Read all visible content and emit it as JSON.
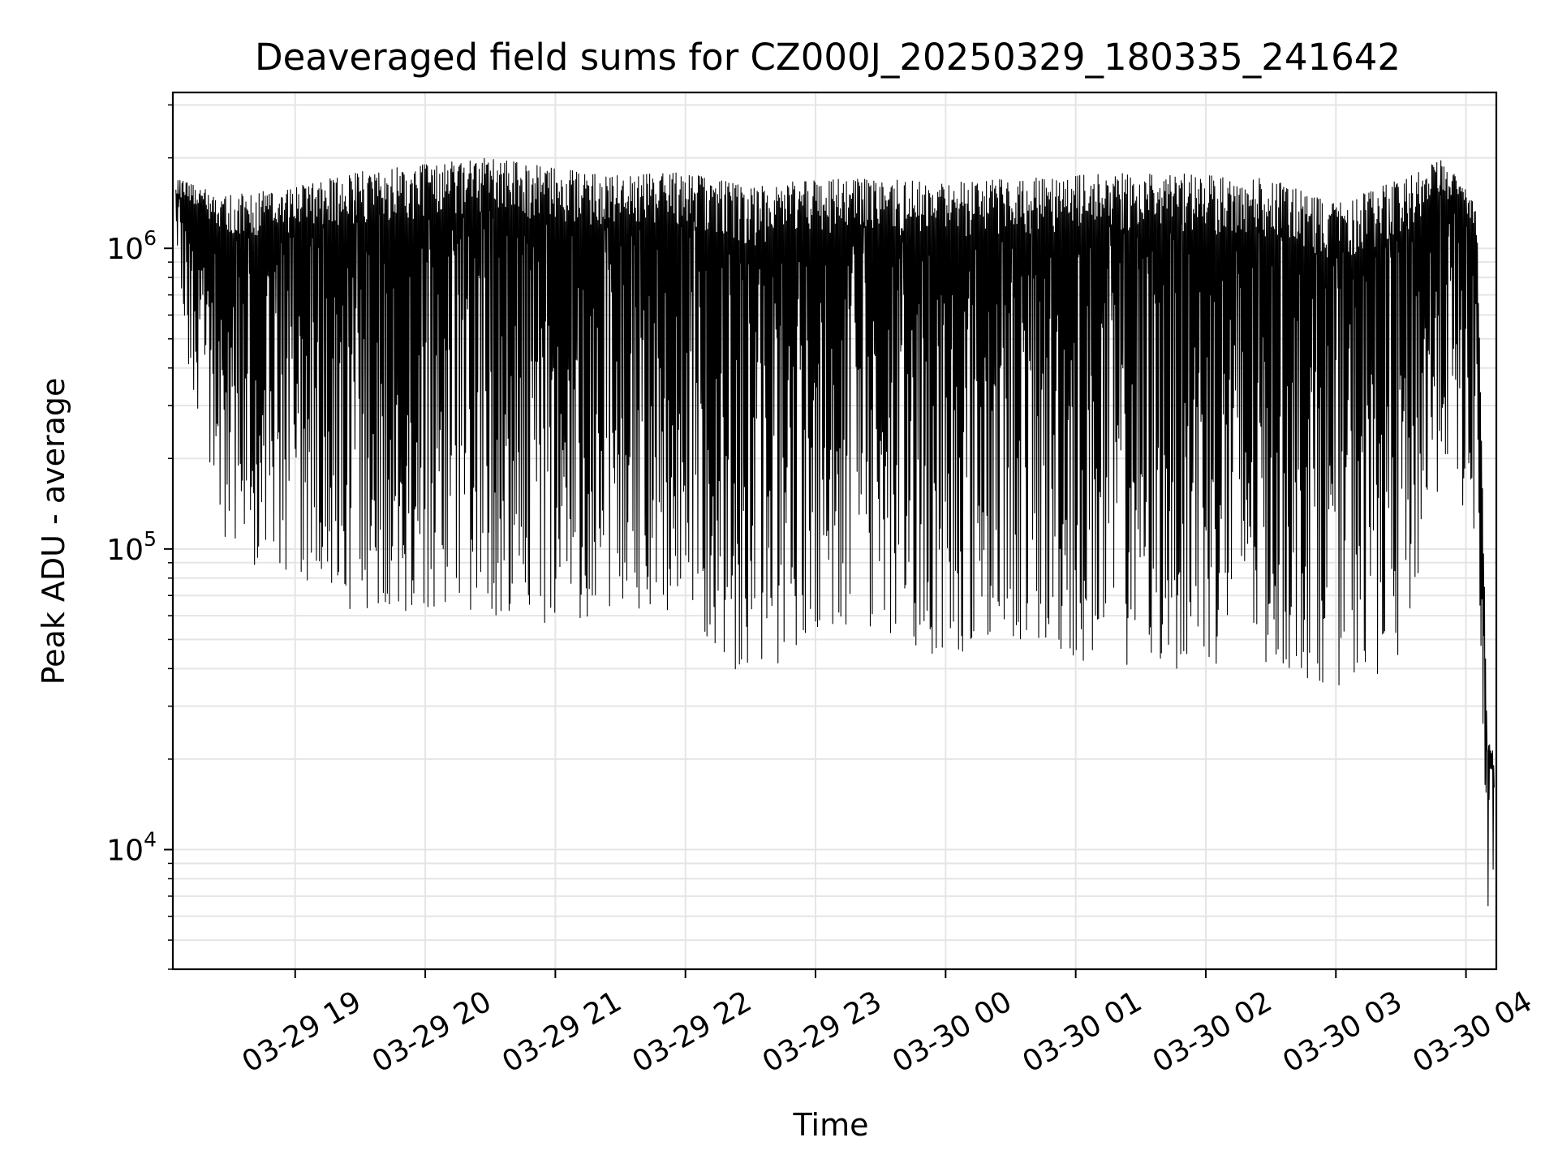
{
  "chart_data": {
    "type": "line",
    "title": "Deaveraged field sums for CZ000J_20250329_180335_241642",
    "xlabel": "Time",
    "ylabel": "Peak ADU - average",
    "yscale": "log",
    "xlim": [
      "2025-03-29 18:03:35",
      "2025-03-30 04:14:00"
    ],
    "ylim": [
      4000,
      3300000
    ],
    "grid": true,
    "legend": "none",
    "line_color": "#000000",
    "grid_color": "#e5e5e5",
    "x_ticks": [
      {
        "value": "2025-03-29 19:00",
        "label": "03-29 19"
      },
      {
        "value": "2025-03-29 20:00",
        "label": "03-29 20"
      },
      {
        "value": "2025-03-29 21:00",
        "label": "03-29 21"
      },
      {
        "value": "2025-03-29 22:00",
        "label": "03-29 22"
      },
      {
        "value": "2025-03-29 23:00",
        "label": "03-29 23"
      },
      {
        "value": "2025-03-30 00:00",
        "label": "03-30 00"
      },
      {
        "value": "2025-03-30 01:00",
        "label": "03-30 01"
      },
      {
        "value": "2025-03-30 02:00",
        "label": "03-30 02"
      },
      {
        "value": "2025-03-30 03:00",
        "label": "03-30 03"
      },
      {
        "value": "2025-03-30 04:00",
        "label": "03-30 04"
      }
    ],
    "y_ticks": [
      {
        "value": 10000,
        "base": "10",
        "exp": "4"
      },
      {
        "value": 100000,
        "base": "10",
        "exp": "5"
      },
      {
        "value": 1000000,
        "base": "10",
        "exp": "6"
      }
    ],
    "series": [
      {
        "x": [
          "2025-03-29 18:05",
          "2025-03-29 18:30",
          "2025-03-29 19:00",
          "2025-03-29 19:30",
          "2025-03-29 20:00",
          "2025-03-29 20:30",
          "2025-03-29 21:00",
          "2025-03-29 21:30",
          "2025-03-29 22:00",
          "2025-03-29 22:30",
          "2025-03-29 23:00",
          "2025-03-29 23:30",
          "2025-03-30 00:00",
          "2025-03-30 00:30",
          "2025-03-30 01:00",
          "2025-03-30 01:30",
          "2025-03-30 02:00",
          "2025-03-30 02:30",
          "2025-03-30 03:00",
          "2025-03-30 03:30",
          "2025-03-30 03:50",
          "2025-03-30 04:05",
          "2025-03-30 04:10",
          "2025-03-30 04:13"
        ],
        "y_max": [
          1700000,
          1500000,
          1600000,
          1800000,
          1900000,
          2000000,
          1850000,
          1750000,
          1800000,
          1600000,
          1700000,
          1700000,
          1650000,
          1700000,
          1750000,
          1800000,
          1750000,
          1700000,
          1400000,
          1700000,
          2000000,
          1400000,
          23000,
          21000
        ],
        "y_min": [
          600000,
          90000,
          70000,
          62000,
          62000,
          60000,
          55000,
          65000,
          60000,
          35000,
          52000,
          52000,
          43000,
          50000,
          42000,
          40000,
          40000,
          40000,
          35000,
          40000,
          200000,
          100000,
          5200,
          9000
        ]
      }
    ]
  }
}
